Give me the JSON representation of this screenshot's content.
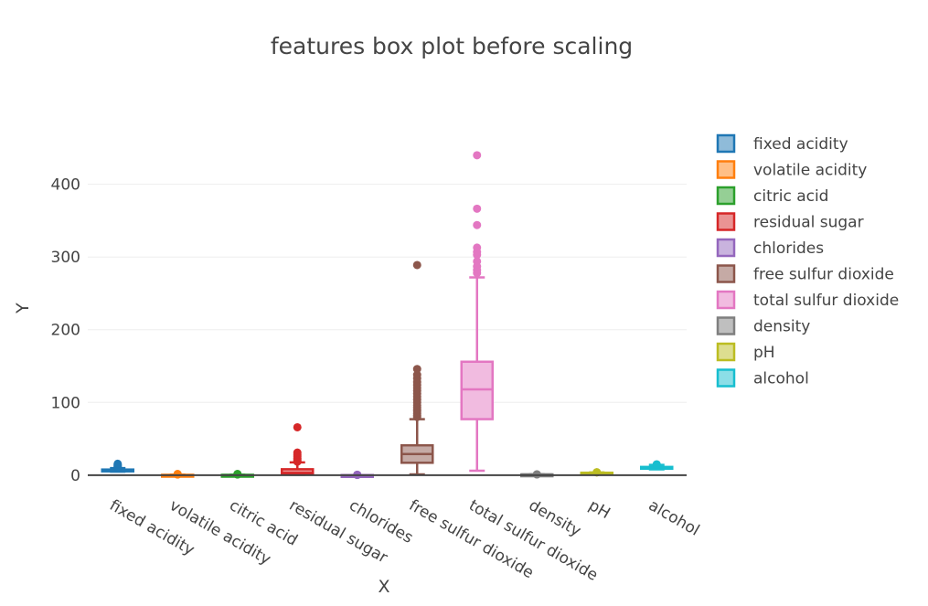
{
  "chart_data": {
    "type": "box",
    "title": "features box plot before scaling",
    "xlabel": "X",
    "ylabel": "Y",
    "ylim": [
      -4,
      470
    ],
    "yticks": [
      0,
      100,
      200,
      300,
      400
    ],
    "grid": true,
    "legend_placement": "right",
    "series": [
      {
        "name": "fixed acidity",
        "color": "#1f77b4",
        "fill": "#8fbbd9",
        "q1": 6.4,
        "median": 7.0,
        "q3": 7.7,
        "lower_fence": 4.8,
        "upper_fence": 9.6,
        "outliers": [
          10.0,
          11.0,
          12.0,
          13.0,
          14.2,
          15.6
        ]
      },
      {
        "name": "volatile acidity",
        "color": "#ff7f0e",
        "fill": "#ffbf86",
        "q1": 0.23,
        "median": 0.29,
        "q3": 0.4,
        "lower_fence": 0.08,
        "upper_fence": 0.65,
        "outliers": [
          0.8,
          1.1,
          1.58
        ]
      },
      {
        "name": "citric acid",
        "color": "#2ca02c",
        "fill": "#95cf95",
        "q1": 0.25,
        "median": 0.31,
        "q3": 0.39,
        "lower_fence": 0.0,
        "upper_fence": 0.6,
        "outliers": [
          0.8,
          1.23,
          1.66
        ]
      },
      {
        "name": "residual sugar",
        "color": "#d62728",
        "fill": "#ea9393",
        "q1": 1.8,
        "median": 3.0,
        "q3": 8.1,
        "lower_fence": 0.6,
        "upper_fence": 17.5,
        "outliers": [
          18.5,
          20.0,
          22.0,
          23.5,
          26.0,
          28.0,
          31.0,
          65.8
        ]
      },
      {
        "name": "chlorides",
        "color": "#9467bd",
        "fill": "#c9b3de",
        "q1": 0.038,
        "median": 0.047,
        "q3": 0.065,
        "lower_fence": 0.009,
        "upper_fence": 0.105,
        "outliers": [
          0.2,
          0.4,
          0.611
        ]
      },
      {
        "name": "free sulfur dioxide",
        "color": "#8c564b",
        "fill": "#c5aaa5",
        "q1": 17,
        "median": 29,
        "q3": 41,
        "lower_fence": 1,
        "upper_fence": 77,
        "outliers": [
          80,
          82,
          85,
          88,
          90,
          93,
          96,
          100,
          104,
          108,
          112,
          116,
          120,
          124,
          128,
          133,
          138,
          146,
          289
        ]
      },
      {
        "name": "total sulfur dioxide",
        "color": "#e377c2",
        "fill": "#f1bbe0",
        "q1": 77,
        "median": 118,
        "q3": 156,
        "lower_fence": 6,
        "upper_fence": 272,
        "outliers": [
          278,
          282,
          287,
          294,
          303,
          307,
          313,
          344,
          366.5,
          440
        ]
      },
      {
        "name": "density",
        "color": "#7f7f7f",
        "fill": "#bfbfbf",
        "q1": 0.992,
        "median": 0.995,
        "q3": 0.997,
        "lower_fence": 0.987,
        "upper_fence": 1.004,
        "outliers": [
          1.01,
          1.039
        ]
      },
      {
        "name": "pH",
        "color": "#bcbd22",
        "fill": "#ddde90",
        "q1": 3.11,
        "median": 3.21,
        "q3": 3.32,
        "lower_fence": 2.8,
        "upper_fence": 3.63,
        "outliers": [
          3.7,
          3.9,
          4.01
        ]
      },
      {
        "name": "alcohol",
        "color": "#17becf",
        "fill": "#8bdee7",
        "q1": 9.5,
        "median": 10.3,
        "q3": 11.3,
        "lower_fence": 8.0,
        "upper_fence": 14.0,
        "outliers": [
          14.2,
          14.9
        ]
      }
    ]
  }
}
